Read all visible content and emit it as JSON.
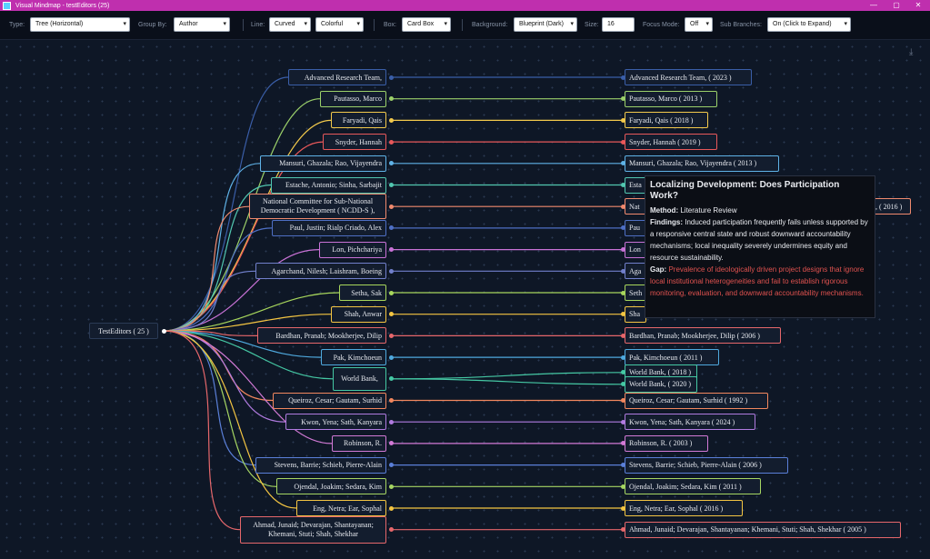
{
  "window": {
    "title": "Visual Mindmap - testEditors (25)",
    "minimize": "—",
    "maximize": "▢",
    "close": "✕"
  },
  "toolbar": {
    "type_label": "Type:",
    "type_value": "Tree (Horizontal)",
    "group_label": "Group By:",
    "group_value": "Author",
    "line_label": "Line:",
    "line_value": "Curved",
    "color_value": "Colorful",
    "box_label": "Box:",
    "box_value": "Card Box",
    "background_label": "Background:",
    "background_value": "Blueprint (Dark)",
    "size_label": "Size:",
    "size_value": "16",
    "focus_label": "Focus Mode:",
    "focus_value": "Off",
    "sub_label": "Sub Branches:",
    "sub_value": "On (Click to Expand)"
  },
  "download_icon": "download-icon",
  "root": {
    "label": "TestEditors ( 25 )"
  },
  "rows": [
    {
      "left": "Advanced Research Team,",
      "right": "Advanced Research Team, ( 2023 )",
      "color": "#3a5ea8"
    },
    {
      "left": "Pautasso, Marco",
      "right": "Pautasso, Marco ( 2013 )",
      "color": "#9bd06a"
    },
    {
      "left": "Faryadi, Qais",
      "right": "Faryadi, Qais ( 2018 )",
      "color": "#f2c94c"
    },
    {
      "left": "Snyder, Hannah",
      "right": "Snyder, Hannah ( 2019 )",
      "color": "#e8585a"
    },
    {
      "left": "Mansuri, Ghazala; Rao, Vijayendra",
      "right": "Mansuri, Ghazala; Rao, Vijayendra ( 2013 )",
      "color": "#5fb2e6"
    },
    {
      "left": "Estache, Antonio; Sinha, Sarbajit",
      "right": "Esta",
      "color": "#52c7b0"
    },
    {
      "left": "National Committee for Sub-National Democratic Development ( NCDD-S ),",
      "right": "Nat",
      "right_tail": ", ( 2016 )",
      "color": "#f08a6e"
    },
    {
      "left": "Paul, Justin; Rialp Criado, Alex",
      "right": "Pau",
      "color": "#4e6fc4"
    },
    {
      "left": "Lon, Pichchariya",
      "right": "Lon",
      "color": "#c872d6"
    },
    {
      "left": "Agarchand, Nilesh; Laishram, Boeing",
      "right": "Aga",
      "color": "#7180cc"
    },
    {
      "left": "Setha, Sak",
      "right": "Seth",
      "color": "#a7d65c"
    },
    {
      "left": "Shah, Anwar",
      "right": "Sha",
      "color": "#f4c542"
    },
    {
      "left": "Bardhan, Pranab; Mookherjee, Dilip",
      "right": "Bardhan, Pranab; Mookherjee, Dilip ( 2006 )",
      "color": "#e6676b"
    },
    {
      "left": "Pak, Kimchoeun",
      "right": "Pak, Kimchoeun ( 2011 )",
      "color": "#4fa9de"
    },
    {
      "left": "World Bank,",
      "right": "World Bank, ( 2018 )",
      "right2": "World Bank, ( 2020 )",
      "color": "#45c8a4"
    },
    {
      "left": "Queiroz, Cesar; Gautam, Surhid",
      "right": "Queiroz, Cesar; Gautam, Surhid ( 1992 )",
      "color": "#f2875e"
    },
    {
      "left": "Kwon, Yena; Sath, Kanyara",
      "right": "Kwon, Yena; Sath, Kanyara ( 2024 )",
      "color": "#b07be0"
    },
    {
      "left": "Robinson, R.",
      "right": "Robinson, R. ( 2003 )",
      "color": "#d27ad6"
    },
    {
      "left": "Stevens, Barrie; Schieb, Pierre-Alain",
      "right": "Stevens, Barrie; Schieb, Pierre-Alain ( 2006 )",
      "color": "#5a7fd8"
    },
    {
      "left": "Ojendal, Joakim; Sedara, Kim",
      "right": "Ojendal, Joakim; Sedara, Kim ( 2011 )",
      "color": "#a6d663"
    },
    {
      "left": "Eng, Netra; Ear, Sophal",
      "right": "Eng, Netra; Ear, Sophal ( 2016 )",
      "color": "#f4c542"
    },
    {
      "left": "Ahmad, Junaid; Devarajan, Shantayanan; Khemani, Stuti; Shah, Shekhar",
      "right": "Ahmad, Junaid; Devarajan, Shantayanan; Khemani, Stuti; Shah, Shekhar ( 2005 )",
      "color": "#e6676b"
    }
  ],
  "tooltip": {
    "title": "Localizing Development: Does Participation Work?",
    "method_label": "Method:",
    "method": "Literature Review",
    "findings_label": "Findings:",
    "findings": "Induced participation frequently fails unless supported by a responsive central state and robust downward accountability mechanisms; local inequality severely undermines equity and resource sustainability.",
    "gap_label": "Gap:",
    "gap": "Prevalence of ideologically driven project designs that ignore local institutional heterogeneities and fail to establish rigorous monitoring, evaluation, and downward accountability mechanisms."
  }
}
